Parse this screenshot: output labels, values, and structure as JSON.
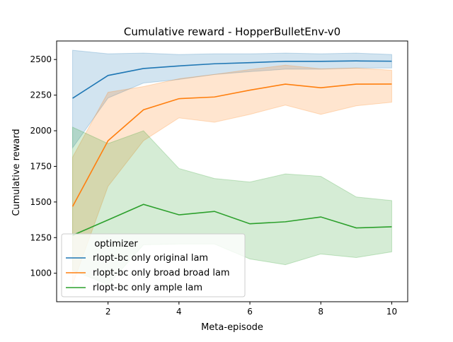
{
  "chart_data": {
    "type": "line",
    "title": "Cumulative reward - HopperBulletEnv-v0",
    "xlabel": "Meta-episode",
    "ylabel": "Cumulative reward",
    "xlim": [
      0.55,
      10.45
    ],
    "ylim": [
      800,
      2630
    ],
    "x_ticks": [
      2,
      4,
      6,
      8,
      10
    ],
    "y_ticks": [
      1000,
      1250,
      1500,
      1750,
      2000,
      2250,
      2500
    ],
    "grid": false,
    "legend": {
      "title": "optimizer",
      "placement": "lower-left"
    },
    "x": [
      1,
      2,
      3,
      4,
      5,
      6,
      7,
      8,
      9,
      10
    ],
    "series": [
      {
        "name": "rlopt-bc only original lam",
        "color": "#1f77b4",
        "values": [
          2228,
          2388,
          2437,
          2455,
          2470,
          2478,
          2487,
          2487,
          2490,
          2488
        ],
        "lower": [
          1880,
          2230,
          2335,
          2360,
          2395,
          2415,
          2432,
          2432,
          2440,
          2440
        ],
        "upper": [
          2565,
          2540,
          2545,
          2535,
          2540,
          2540,
          2545,
          2540,
          2545,
          2535
        ]
      },
      {
        "name": "rlopt-bc only broad broad lam",
        "color": "#ff7f0e",
        "values": [
          1468,
          1930,
          2147,
          2225,
          2237,
          2285,
          2327,
          2302,
          2327,
          2328
        ],
        "lower": [
          920,
          1610,
          1930,
          2090,
          2060,
          2115,
          2180,
          2115,
          2175,
          2200
        ],
        "upper": [
          1815,
          2270,
          2310,
          2365,
          2395,
          2430,
          2460,
          2435,
          2440,
          2425
        ]
      },
      {
        "name": "rlopt-bc only ample lam",
        "color": "#2ca02c",
        "values": [
          1266,
          1374,
          1483,
          1410,
          1434,
          1347,
          1361,
          1395,
          1318,
          1326
        ],
        "lower": [
          1020,
          920,
          1200,
          1205,
          1205,
          1100,
          1060,
          1135,
          1110,
          1150
        ],
        "upper": [
          2025,
          1910,
          2000,
          1735,
          1665,
          1640,
          1697,
          1680,
          1535,
          1510
        ]
      }
    ]
  }
}
